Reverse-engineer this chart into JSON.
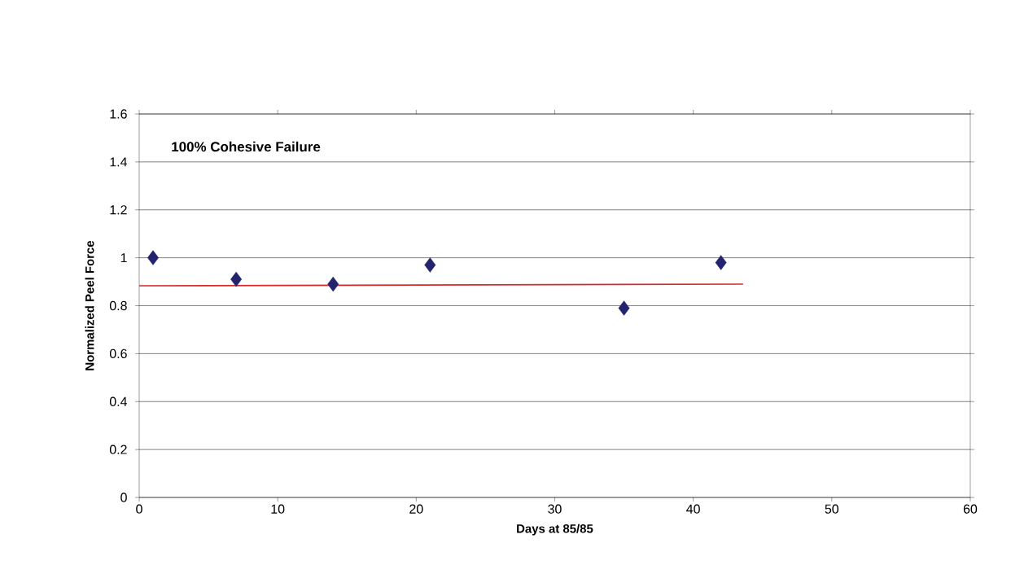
{
  "chart_data": {
    "type": "scatter",
    "xlabel": "Days at 85/85",
    "ylabel": "Normalized Peel Force",
    "annotations": [
      "100% Cohesive Failure"
    ],
    "x": [
      1,
      7,
      14,
      21,
      35,
      42
    ],
    "series": [
      {
        "color": "#24246e",
        "marker": "diamond",
        "values": [
          1.0,
          0.91,
          0.89,
          0.97,
          0.79,
          0.98
        ]
      },
      {
        "type": "line",
        "color": "#d42a2a",
        "marker": "none",
        "x": [
          0,
          43.6
        ],
        "values": [
          0.883,
          0.89
        ]
      }
    ],
    "xlim": [
      0,
      60
    ],
    "ylim": [
      0,
      1.6
    ],
    "xticks": [
      0,
      10,
      20,
      30,
      40,
      50,
      60
    ],
    "yticks": [
      0,
      0.2,
      0.4,
      0.6,
      0.8,
      1,
      1.2,
      1.4,
      1.6
    ],
    "grid": "y"
  }
}
